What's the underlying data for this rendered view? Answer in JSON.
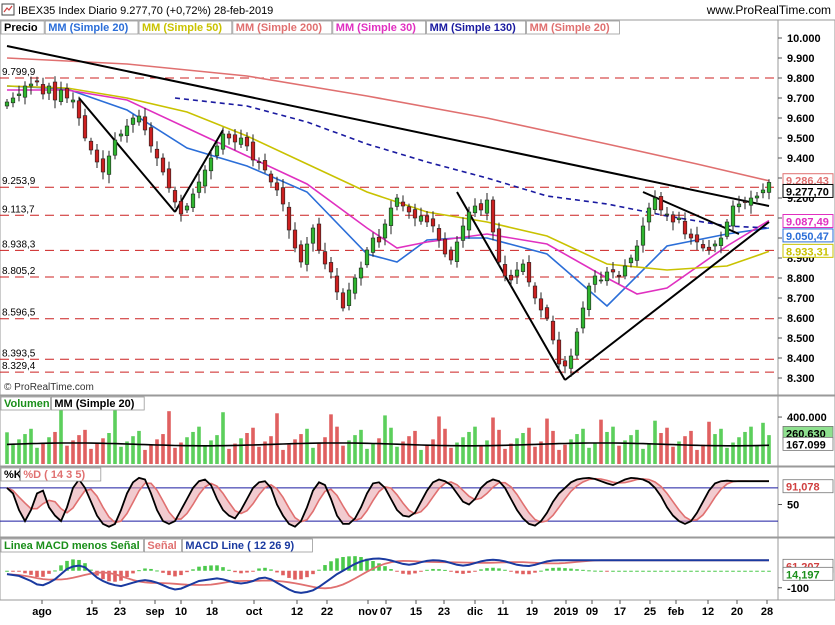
{
  "header": {
    "icon": "instrument-icon",
    "title": "IBEX35 Index  Diario  9.277,70 (+0,72%)  28-feb-2019",
    "source": "www.ProRealTime.com"
  },
  "price_panel": {
    "legend": [
      {
        "label": "Precio",
        "color": "#000000"
      },
      {
        "label": "MM (Simple 20)",
        "color": "#2b6ed8"
      },
      {
        "label": "MM (Simple 50)",
        "color": "#c9c200"
      },
      {
        "label": "MM (Simple 200)",
        "color": "#e07070"
      },
      {
        "label": "MM (Simple 30)",
        "color": "#e030c0"
      },
      {
        "label": "MM (Simple 130)",
        "color": "#1a1aa0"
      },
      {
        "label": "MM (Simple 20)",
        "color": "#e07070"
      }
    ],
    "left_levels": [
      "9.799,9",
      "9.253,9",
      "9.113,7",
      "8.938,3",
      "8.805,2",
      "8.596,5",
      "8.393,5",
      "8.329,4"
    ],
    "watermark": "© ProRealTime.com"
  },
  "volume_panel": {
    "legend": [
      {
        "label": "Volumen",
        "color": "#1a8f1a"
      },
      {
        "label": "MM (Simple 20)",
        "color": "#000000"
      }
    ],
    "ticks": [
      "400.000"
    ],
    "value_labels": [
      {
        "text": "260.630",
        "bg": "#8fe08f"
      },
      {
        "text": "167.099",
        "bg": "#ffffff"
      }
    ]
  },
  "stoch_panel": {
    "legend": [
      {
        "label": "%K",
        "color": "#000000"
      },
      {
        "label": "%D ( 14 3 5)",
        "color": "#e07070"
      }
    ],
    "ticks": [
      "50"
    ],
    "value_labels": [
      {
        "text": "91,078",
        "bg": "#ffffff",
        "color": "#d04040"
      }
    ]
  },
  "macd_panel": {
    "legend": [
      {
        "label": "Linea MACD menos Señal",
        "color": "#1a8f1a"
      },
      {
        "label": "Señal",
        "color": "#e07070"
      },
      {
        "label": "MACD Line ( 12 26 9)",
        "color": "#1a3aa0"
      }
    ],
    "ticks": [
      "-100"
    ],
    "value_labels": [
      {
        "text": "61,207",
        "bg": "#ffffff",
        "color": "#d04040"
      },
      {
        "text": "14,197",
        "bg": "#ffffff",
        "color": "#1a8f1a"
      }
    ]
  },
  "x_axis": {
    "labels": [
      "ago",
      "15",
      "23",
      "sep",
      "10",
      "18",
      "oct",
      "12",
      "22",
      "nov",
      "07",
      "15",
      "23",
      "dic",
      "11",
      "19",
      "2019",
      "09",
      "17",
      "25",
      "feb",
      "12",
      "20",
      "28"
    ]
  },
  "chart_data": {
    "type": "candlestick",
    "title": "IBEX35 Index Diario",
    "y_ticks": [
      "10.000",
      "9.900",
      "9.800",
      "9.700",
      "9.600",
      "9.500",
      "9.400",
      "9.300",
      "9.200",
      "9.100",
      "9.000",
      "8.900",
      "8.800",
      "8.700",
      "8.600",
      "8.500",
      "8.400",
      "8.300"
    ],
    "ylim": [
      8230,
      10060
    ],
    "last_close": 9277.7,
    "change_pct": 0.72,
    "date": "28-feb-2019",
    "value_labels": [
      {
        "text": "9.286,43",
        "value": 9286.43,
        "color": "#e07070"
      },
      {
        "text": "9.277,70",
        "value": 9277.7,
        "color": "#000000"
      },
      {
        "text": "9.087,49",
        "value": 9087.49,
        "color": "#e030c0"
      },
      {
        "text": "9.050,47",
        "value": 9050.47,
        "color": "#2b6ed8"
      },
      {
        "text": "8.933,31",
        "value": 8933.31,
        "color": "#c9c200"
      }
    ],
    "closes": [
      9680,
      9700,
      9720,
      9760,
      9770,
      9780,
      9720,
      9760,
      9690,
      9740,
      9700,
      9690,
      9600,
      9500,
      9440,
      9380,
      9330,
      9410,
      9490,
      9520,
      9560,
      9600,
      9610,
      9540,
      9460,
      9400,
      9330,
      9250,
      9180,
      9120,
      9160,
      9220,
      9280,
      9340,
      9400,
      9460,
      9520,
      9500,
      9480,
      9500,
      9460,
      9390,
      9380,
      9340,
      9280,
      9240,
      9170,
      9040,
      8950,
      8880,
      8970,
      9050,
      8940,
      8870,
      8830,
      8730,
      8650,
      8740,
      8800,
      8850,
      8940,
      9000,
      8980,
      9070,
      9150,
      9200,
      9160,
      9130,
      9100,
      9110,
      9080,
      9060,
      8990,
      8920,
      8890,
      8980,
      9060,
      9130,
      9160,
      9140,
      9190,
      9030,
      8880,
      8810,
      8790,
      8840,
      8870,
      8780,
      8700,
      8640,
      8600,
      8490,
      8370,
      8360,
      8410,
      8530,
      8650,
      8760,
      8810,
      8790,
      8830,
      8830,
      8810,
      8860,
      8900,
      8960,
      9060,
      9150,
      9200,
      9140,
      9120,
      9080,
      9100,
      9020,
      9000,
      8980,
      8950,
      8940,
      8970,
      9000,
      9080,
      9160,
      9170,
      9180,
      9200,
      9210,
      9240,
      9278
    ],
    "moving_averages": [
      {
        "name": "MM (Simple 20)",
        "color": "#2b6ed8",
        "points": [
          [
            0,
            9760
          ],
          [
            10,
            9745
          ],
          [
            20,
            9640
          ],
          [
            30,
            9450
          ],
          [
            40,
            9360
          ],
          [
            50,
            9230
          ],
          [
            60,
            8920
          ],
          [
            65,
            8880
          ],
          [
            70,
            8990
          ],
          [
            75,
            9000
          ],
          [
            80,
            9000
          ],
          [
            90,
            8920
          ],
          [
            100,
            8660
          ],
          [
            110,
            8960
          ],
          [
            120,
            9020
          ],
          [
            127,
            9050
          ]
        ]
      },
      {
        "name": "MM (Simple 30)",
        "color": "#e030c0",
        "points": [
          [
            0,
            9740
          ],
          [
            10,
            9740
          ],
          [
            20,
            9690
          ],
          [
            30,
            9550
          ],
          [
            40,
            9410
          ],
          [
            50,
            9270
          ],
          [
            60,
            9050
          ],
          [
            65,
            8950
          ],
          [
            70,
            8980
          ],
          [
            80,
            9020
          ],
          [
            90,
            8970
          ],
          [
            100,
            8800
          ],
          [
            105,
            8720
          ],
          [
            110,
            8750
          ],
          [
            120,
            8960
          ],
          [
            127,
            9087
          ]
        ]
      },
      {
        "name": "MM (Simple 50)",
        "color": "#c9c200",
        "points": [
          [
            0,
            9760
          ],
          [
            10,
            9750
          ],
          [
            20,
            9700
          ],
          [
            30,
            9630
          ],
          [
            40,
            9510
          ],
          [
            50,
            9370
          ],
          [
            60,
            9230
          ],
          [
            70,
            9130
          ],
          [
            80,
            9080
          ],
          [
            90,
            9010
          ],
          [
            100,
            8870
          ],
          [
            110,
            8840
          ],
          [
            120,
            8860
          ],
          [
            127,
            8933
          ]
        ]
      },
      {
        "name": "MM (Simple 130)",
        "color": "#1a1aa0",
        "dashed": true,
        "points": [
          [
            28,
            9700
          ],
          [
            40,
            9660
          ],
          [
            50,
            9580
          ],
          [
            60,
            9470
          ],
          [
            70,
            9380
          ],
          [
            80,
            9300
          ],
          [
            90,
            9210
          ],
          [
            100,
            9170
          ],
          [
            110,
            9110
          ],
          [
            120,
            9060
          ],
          [
            127,
            9050
          ]
        ]
      },
      {
        "name": "MM (Simple 200)",
        "color": "#e07070",
        "points": [
          [
            0,
            9900
          ],
          [
            20,
            9870
          ],
          [
            40,
            9810
          ],
          [
            60,
            9710
          ],
          [
            80,
            9600
          ],
          [
            100,
            9470
          ],
          [
            115,
            9370
          ],
          [
            127,
            9286
          ]
        ]
      }
    ],
    "horizontal_levels": [
      9799.9,
      9253.9,
      9113.7,
      8938.3,
      8805.2,
      8596.5,
      8393.5,
      8329.4
    ],
    "volume": {
      "ylim": [
        0,
        460000
      ],
      "ma_last": 167099,
      "last": 260630
    },
    "stochastic": {
      "ylim": [
        -5,
        105
      ],
      "k_last": 92.4,
      "d_last": 91.078,
      "k": [
        80,
        70,
        40,
        20,
        40,
        70,
        75,
        45,
        30,
        20,
        45,
        80,
        95,
        80,
        55,
        30,
        15,
        10,
        15,
        40,
        70,
        90,
        98,
        95,
        70,
        40,
        20,
        15,
        20,
        40,
        60,
        80,
        92,
        95,
        85,
        60,
        40,
        30,
        25,
        40,
        60,
        80,
        90,
        92,
        80,
        50,
        30,
        15,
        10,
        20,
        45,
        75,
        90,
        85,
        60,
        30,
        15,
        15,
        25,
        45,
        70,
        88,
        90,
        80,
        60,
        40,
        30,
        28,
        35,
        55,
        75,
        90,
        95,
        92,
        85,
        70,
        55,
        50,
        60,
        80,
        90,
        95,
        92,
        80,
        60,
        40,
        25,
        15,
        12,
        20,
        35,
        55,
        70,
        80,
        90,
        95,
        97,
        98,
        96,
        92,
        88,
        85,
        90,
        95,
        98,
        97,
        95,
        90,
        80,
        65,
        45,
        30,
        20,
        15,
        20,
        35,
        55,
        75,
        88,
        92,
        93,
        92,
        92,
        92,
        92,
        92,
        92,
        92
      ],
      "d_lag": 3
    },
    "macd": {
      "ylim": [
        -160,
        110
      ],
      "macd_last": 61.207,
      "signal_last": 14.197,
      "macd": [
        -20,
        -25,
        -30,
        -45,
        -60,
        -80,
        -85,
        -70,
        -50,
        -20,
        10,
        25,
        30,
        20,
        -10,
        -40,
        -60,
        -75,
        -85,
        -90,
        -80,
        -70,
        -60,
        -55,
        -60,
        -70,
        -85,
        -100,
        -110,
        -105,
        -90,
        -75,
        -60,
        -55,
        -50,
        -45,
        -50,
        -60,
        -70,
        -75,
        -70,
        -60,
        -45,
        -40,
        -50,
        -70,
        -90,
        -110,
        -125,
        -130,
        -125,
        -115,
        -95,
        -70,
        -45,
        -20,
        0,
        20,
        40,
        55,
        65,
        70,
        72,
        68,
        60,
        50,
        40,
        35,
        40,
        50,
        58,
        62,
        60,
        55,
        45,
        35,
        30,
        35,
        45,
        55,
        62,
        65,
        62,
        55,
        45,
        35,
        30,
        28,
        35,
        45,
        55,
        60,
        62,
        61,
        61,
        61,
        61,
        61,
        61,
        61,
        61,
        61,
        61,
        61,
        61,
        61,
        61,
        61,
        61,
        61,
        61,
        61,
        61,
        61,
        61,
        61,
        61,
        61,
        61,
        61,
        61,
        61,
        61,
        61,
        61,
        61,
        61,
        61
      ]
    }
  }
}
